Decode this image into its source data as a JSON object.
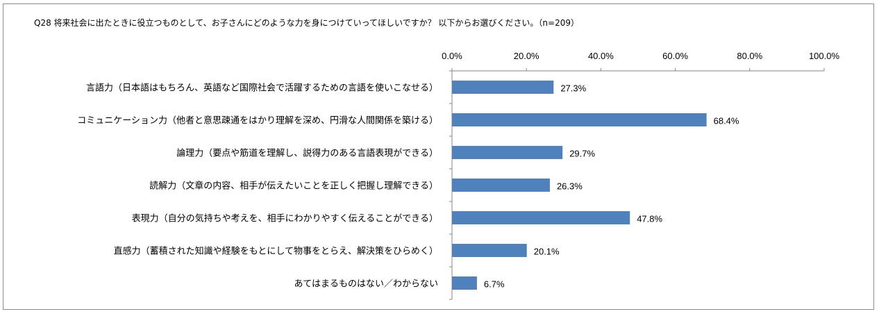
{
  "question": "Q28 将来社会に出たときに役立つものとして、お子さんにどのような力を身につけていってほしいですか？ 以下からお選びください。（n=209）",
  "chart_data": {
    "type": "bar",
    "orientation": "horizontal",
    "xlim": [
      0,
      100
    ],
    "tick_values": [
      0,
      20,
      40,
      60,
      80,
      100
    ],
    "tick_labels": [
      "0.0%",
      "20.0%",
      "40.0%",
      "60.0%",
      "80.0%",
      "100.0%"
    ],
    "axis_position": "top",
    "grid": false,
    "bar_color": "#4f81bd",
    "categories": [
      "言語力（日本語はもちろん、英語など国際社会で活躍するための言語を使いこなせる）",
      "コミュニケーション力（他者と意思疎通をはかり理解を深め、円滑な人間関係を築ける）",
      "論理力（要点や筋道を理解し、説得力のある言語表現ができる）",
      "読解力（文章の内容、相手が伝えたいことを正しく把握し理解できる）",
      "表現力（自分の気持ちや考えを、相手にわかりやすく伝えることができる）",
      "直感力（蓄積された知識や経験をもとにして物事をとらえ、解決策をひらめく）",
      "あてはまるものはない／わからない"
    ],
    "values": [
      27.3,
      68.4,
      29.7,
      26.3,
      47.8,
      20.1,
      6.7
    ],
    "value_labels": [
      "27.3%",
      "68.4%",
      "29.7%",
      "26.3%",
      "47.8%",
      "20.1%",
      "6.7%"
    ]
  }
}
